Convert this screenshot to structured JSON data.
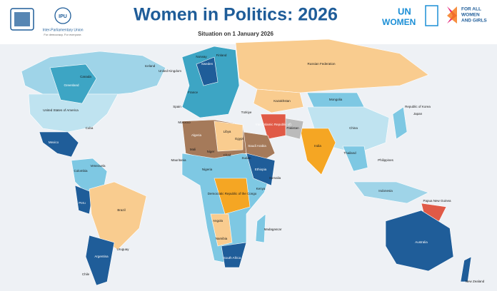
{
  "header": {
    "title": "Women in Politics: 2026",
    "subtitle": "Situation on 1 January 2026",
    "ipu_logo": "IPU",
    "ipu_name": "Inter-Parliamentary Union",
    "ipu_tagline": "For democracy. For everyone.",
    "un": "UN",
    "women": "WOMEN",
    "for_all": "FOR ALL",
    "for_women": "WOMEN",
    "for_girls": "AND GIRLS"
  },
  "map": {
    "labels": [
      "Canada",
      "United States of America",
      "Mexico",
      "Cuba",
      "Colombia",
      "Venezuela",
      "Peru",
      "Brazil",
      "Chile",
      "Argentina",
      "Uruguay",
      "Greenland",
      "Iceland",
      "United Kingdom",
      "Norway",
      "Sweden",
      "Finland",
      "France",
      "Spain",
      "Russian Federation",
      "Kazakhstan",
      "Mongolia",
      "China",
      "Japan",
      "Republic of Korea",
      "India",
      "Pakistan",
      "Iran (Islamic Republic of)",
      "Saudi Arabia",
      "Algeria",
      "Libya",
      "Egypt",
      "Mali",
      "Niger",
      "Chad",
      "Sudan",
      "Nigeria",
      "Ethiopia",
      "Somalia",
      "Kenya",
      "Democratic Republic of the Congo",
      "Angola",
      "Namibia",
      "South Africa",
      "Madagascar",
      "Thailand",
      "Philippines",
      "Indonesia",
      "Papua New Guinea",
      "Australia",
      "New Zealand",
      "Morocco",
      "Mauritania",
      "Türkiye"
    ]
  }
}
